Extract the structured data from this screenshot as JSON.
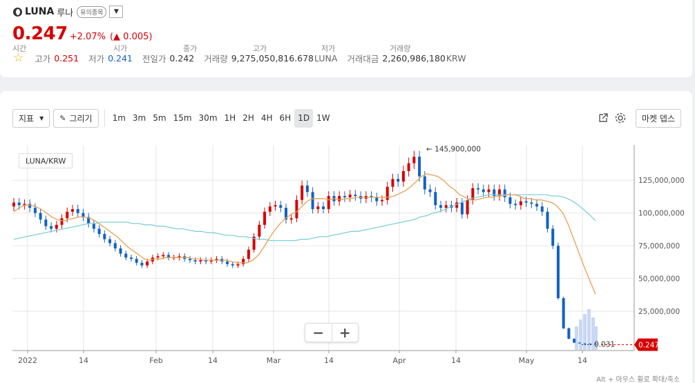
{
  "header": {
    "name": "LUNA",
    "name_kor": "루나",
    "badge": "유의종목",
    "dropdown_icon": "caret-down-icon",
    "price": "0.247",
    "change_pct": "+2.07%",
    "change_arrow": "▲",
    "change_abs": "0.005",
    "stats": [
      {
        "label": "고가",
        "value": "0.251",
        "tone": "up",
        "unit": ""
      },
      {
        "label": "저가",
        "value": "0.241",
        "tone": "down",
        "unit": ""
      },
      {
        "label": "전일가",
        "value": "0.242",
        "tone": "",
        "unit": ""
      },
      {
        "label": "거래량",
        "value": "9,275,050,816.678",
        "tone": "",
        "unit": "LUNA"
      },
      {
        "label": "거래대금",
        "value": "2,260,986,180",
        "tone": "",
        "unit": "KRW"
      }
    ]
  },
  "toolbar": {
    "indicator_label": "지표",
    "draw_label": "그리기",
    "periods": [
      "1m",
      "3m",
      "5m",
      "15m",
      "30m",
      "1H",
      "2H",
      "4H",
      "6H",
      "1D",
      "1W"
    ],
    "active_period": "1D",
    "market_depth_label": "마켓 뎁스"
  },
  "info_labels": [
    "시간",
    "시가",
    "종가",
    "고가",
    "저가",
    "거래량"
  ],
  "pair_label": "LUNA/KRW",
  "zoom": {
    "minus": "−",
    "plus": "+"
  },
  "footer_hint": "Alt + 마우스 휠로 확대/축소",
  "colors": {
    "up": "#d60000",
    "down": "#1261c4",
    "ma_short": "#e8a050",
    "ma_long": "#7fcfd8",
    "volume": "#c8d8f5"
  },
  "chart_data": {
    "type": "candlestick",
    "pair": "LUNA/KRW",
    "interval": "1D",
    "x_labels": [
      "2022",
      "14",
      "Feb",
      "14",
      "Mar",
      "14",
      "Apr",
      "14",
      "May",
      "14"
    ],
    "y_ticks": [
      25000000,
      50000000,
      75000000,
      100000000,
      125000000
    ],
    "y_tick_labels": [
      "25,000,000",
      "50,000,000",
      "75,000,000",
      "100,000,000",
      "125,000,000"
    ],
    "ylim": [
      -5000000,
      152000000
    ],
    "max_label": "← 145,900,000",
    "max_value": 145900000,
    "last_label": "0.031",
    "current_price_badge": "0.247",
    "current_price": 0.247,
    "close_series": [
      108,
      106,
      107,
      104,
      100,
      95,
      90,
      88,
      91,
      96,
      101,
      103,
      100,
      97,
      92,
      88,
      84,
      80,
      77,
      73,
      69,
      66,
      65,
      62,
      60,
      63,
      66,
      67,
      68,
      66,
      66,
      67,
      65,
      64,
      63,
      64,
      63,
      64,
      65,
      63,
      61,
      60,
      61,
      65,
      72,
      82,
      91,
      101,
      105,
      106,
      104,
      95,
      96,
      110,
      121,
      116,
      103,
      105,
      103,
      113,
      109,
      113,
      112,
      114,
      113,
      111,
      113,
      112,
      109,
      110,
      120,
      126,
      124,
      132,
      138,
      143,
      128,
      118,
      116,
      106,
      104,
      106,
      104,
      108,
      99,
      110,
      119,
      118,
      116,
      118,
      113,
      118,
      112,
      107,
      106,
      109,
      108,
      107,
      105,
      101,
      88,
      75,
      35,
      12,
      4,
      1,
      0.5,
      0.3,
      0.2,
      0.1
    ],
    "ma_short": [
      101,
      104,
      106,
      106,
      105,
      103,
      100,
      97,
      95,
      94,
      95,
      96,
      97,
      97,
      96,
      94,
      91,
      88,
      85,
      82,
      78,
      74,
      71,
      68,
      65,
      64,
      65,
      65,
      66,
      66,
      66,
      66,
      66,
      65,
      65,
      64,
      64,
      64,
      64,
      64,
      63,
      62,
      62,
      62,
      64,
      68,
      74,
      81,
      87,
      92,
      96,
      99,
      101,
      105,
      109,
      111,
      111,
      111,
      110,
      111,
      110,
      111,
      111,
      112,
      112,
      112,
      112,
      112,
      112,
      112,
      113,
      115,
      117,
      120,
      124,
      128,
      130,
      129,
      128,
      125,
      121,
      118,
      114,
      112,
      110,
      110,
      111,
      112,
      112,
      113,
      113,
      114,
      114,
      113,
      111,
      111,
      110,
      110,
      109,
      108,
      105,
      100,
      91,
      80,
      69,
      58,
      48,
      38
    ],
    "ma_long": [
      80,
      81,
      82,
      83,
      84,
      85,
      86,
      87,
      88,
      89,
      90,
      91,
      92,
      92,
      93,
      93,
      93,
      93,
      93,
      92,
      92,
      91,
      91,
      90,
      90,
      89,
      88,
      88,
      87,
      86,
      86,
      85,
      85,
      84,
      83,
      83,
      82,
      82,
      81,
      80,
      80,
      79,
      79,
      79,
      79,
      79,
      80,
      80,
      81,
      82,
      82,
      83,
      84,
      85,
      86,
      86,
      87,
      88,
      89,
      90,
      91,
      92,
      93,
      94,
      95,
      97,
      98,
      100,
      101,
      103,
      105,
      107,
      109,
      111,
      112,
      113,
      114,
      114,
      114,
      114,
      114,
      114,
      114,
      114,
      114,
      114,
      113,
      113,
      112,
      110,
      107,
      103,
      99,
      94
    ]
  }
}
